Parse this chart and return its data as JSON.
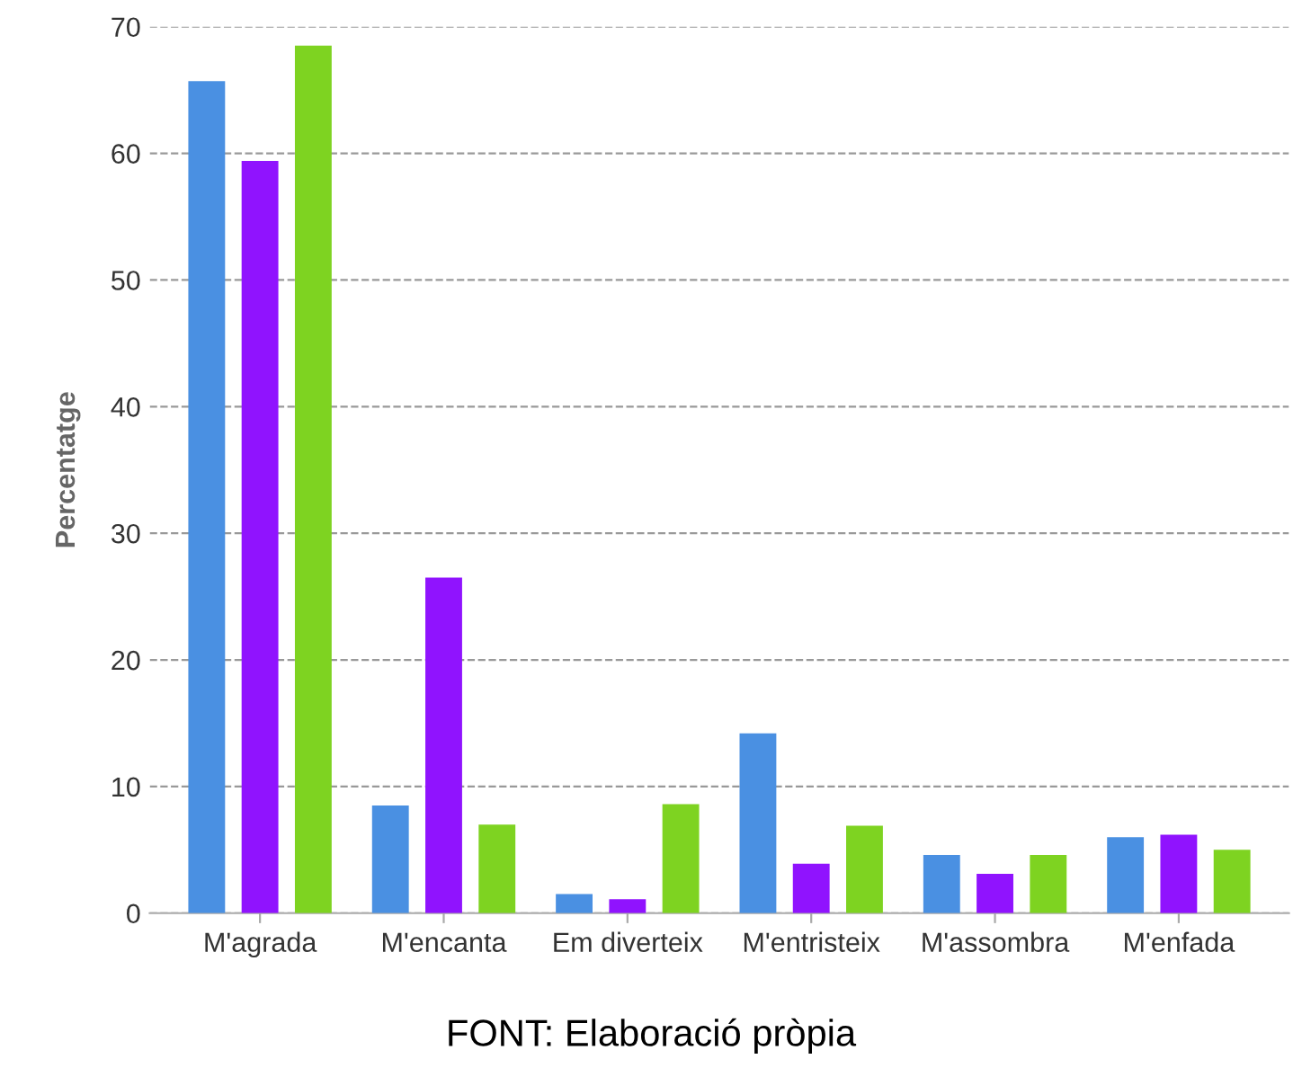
{
  "chart_data": {
    "type": "bar",
    "ylabel": "Percentatge",
    "categories": [
      "M'agrada",
      "M'encanta",
      "Em diverteix",
      "M'entristeix",
      "M'assombra",
      "M'enfada"
    ],
    "series": [
      {
        "color": "#4a90e2",
        "values": [
          65.7,
          8.5,
          1.5,
          14.2,
          4.6,
          6.0
        ]
      },
      {
        "color": "#9013fe",
        "values": [
          59.4,
          26.5,
          1.1,
          3.9,
          3.1,
          6.2
        ]
      },
      {
        "color": "#7ed321",
        "values": [
          68.5,
          7.0,
          8.6,
          6.9,
          4.6,
          5.0
        ]
      }
    ],
    "ylim": [
      0,
      70
    ],
    "yticks": [
      0,
      10,
      20,
      30,
      40,
      50,
      60,
      70
    ],
    "grid": "y",
    "annotations": [
      "FONT: Elaboració pròpia"
    ]
  }
}
